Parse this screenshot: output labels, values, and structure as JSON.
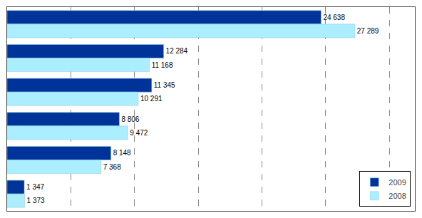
{
  "chart_data": {
    "type": "bar",
    "orientation": "horizontal",
    "categories": [
      null,
      null,
      null,
      null,
      null,
      null
    ],
    "series": [
      {
        "name": "2009",
        "color": "#003399",
        "values": [
          24638,
          12284,
          11345,
          8806,
          8148,
          1347
        ],
        "value_labels": [
          "24 638",
          "12 284",
          "11 345",
          "8 806",
          "8 148",
          "1 347"
        ]
      },
      {
        "name": "2008",
        "color": "#aaeeff",
        "values": [
          27289,
          11168,
          10291,
          9472,
          7368,
          1373
        ],
        "value_labels": [
          "27 289",
          "11 168",
          "10 291",
          "9 472",
          "7 368",
          "1 373"
        ]
      }
    ],
    "xlim": [
      0,
      32000
    ],
    "xticks": [
      5000,
      10000,
      15000,
      20000,
      25000,
      30000
    ],
    "grid": true,
    "tick_labels": false,
    "data_labels": true,
    "legend": "lower right"
  }
}
